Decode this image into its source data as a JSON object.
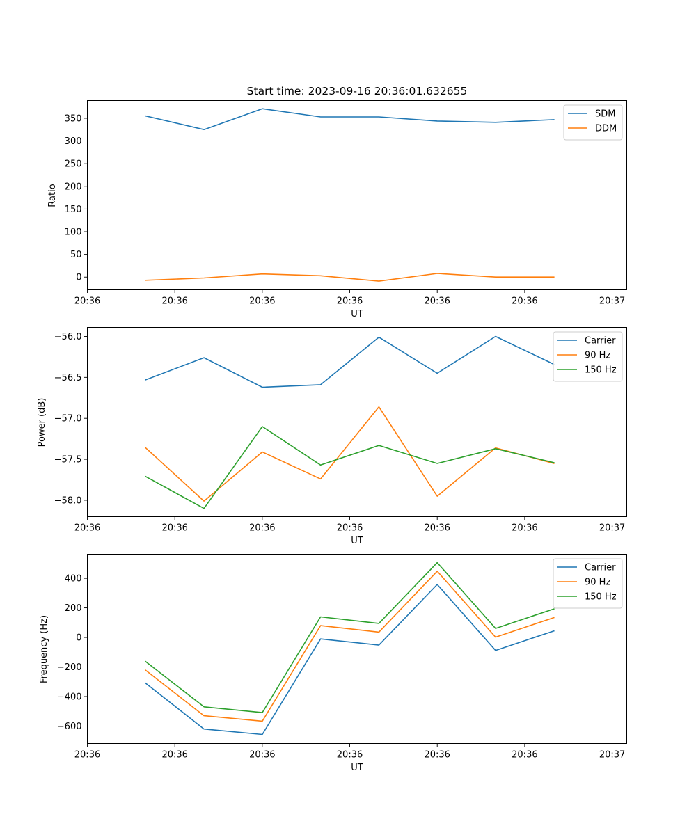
{
  "chart_data": [
    {
      "type": "line",
      "title": "Start time: 2023-09-16 20:36:01.632655",
      "xlabel": "UT",
      "ylabel": "Ratio",
      "x": [
        1,
        2,
        3,
        4,
        5,
        6,
        7,
        8
      ],
      "xlim": [
        0.0,
        9.25
      ],
      "x_ticks": [
        0.0,
        1.5,
        3.0,
        4.5,
        6.0,
        7.5,
        9.0
      ],
      "x_tick_labels": [
        "20:36",
        "20:36",
        "20:36",
        "20:36",
        "20:36",
        "20:36",
        "20:37"
      ],
      "ylim": [
        -28,
        389
      ],
      "y_ticks": [
        0,
        50,
        100,
        150,
        200,
        250,
        300,
        350
      ],
      "y_tick_labels": [
        "0",
        "50",
        "100",
        "150",
        "200",
        "250",
        "300",
        "350"
      ],
      "legend": "top-right",
      "series": [
        {
          "name": "SDM",
          "color": "#1f77b4",
          "values": [
            355,
            325,
            371,
            353,
            353,
            344,
            341,
            347
          ]
        },
        {
          "name": "DDM",
          "color": "#ff7f0e",
          "values": [
            -7,
            -2,
            7,
            3,
            -9,
            8,
            0,
            0
          ]
        }
      ]
    },
    {
      "type": "line",
      "title": "",
      "xlabel": "UT",
      "ylabel": "Power (dB)",
      "x": [
        1,
        2,
        3,
        4,
        5,
        6,
        7,
        8
      ],
      "xlim": [
        0.0,
        9.25
      ],
      "x_ticks": [
        0.0,
        1.5,
        3.0,
        4.5,
        6.0,
        7.5,
        9.0
      ],
      "x_tick_labels": [
        "20:36",
        "20:36",
        "20:36",
        "20:36",
        "20:36",
        "20:36",
        "20:37"
      ],
      "ylim": [
        -58.2,
        -55.89
      ],
      "y_ticks": [
        -58.0,
        -57.5,
        -57.0,
        -56.5,
        -56.0
      ],
      "y_tick_labels": [
        "−58.0",
        "−57.5",
        "−57.0",
        "−56.5",
        "−56.0"
      ],
      "legend": "top-right",
      "series": [
        {
          "name": "Carrier",
          "color": "#1f77b4",
          "values": [
            -56.53,
            -56.26,
            -56.62,
            -56.59,
            -56.01,
            -56.45,
            -56.0,
            -56.34
          ]
        },
        {
          "name": "90 Hz",
          "color": "#ff7f0e",
          "values": [
            -57.36,
            -58.01,
            -57.41,
            -57.74,
            -56.86,
            -57.95,
            -57.36,
            -57.55
          ]
        },
        {
          "name": "150 Hz",
          "color": "#2ca02c",
          "values": [
            -57.71,
            -58.1,
            -57.1,
            -57.57,
            -57.33,
            -57.55,
            -57.37,
            -57.54
          ]
        }
      ]
    },
    {
      "type": "line",
      "title": "",
      "xlabel": "UT",
      "ylabel": "Frequency (Hz)",
      "x": [
        1,
        2,
        3,
        4,
        5,
        6,
        7,
        8
      ],
      "xlim": [
        0.0,
        9.25
      ],
      "x_ticks": [
        0.0,
        1.5,
        3.0,
        4.5,
        6.0,
        7.5,
        9.0
      ],
      "x_tick_labels": [
        "20:36",
        "20:36",
        "20:36",
        "20:36",
        "20:36",
        "20:36",
        "20:37"
      ],
      "ylim": [
        -718,
        563
      ],
      "y_ticks": [
        -600,
        -400,
        -200,
        0,
        200,
        400
      ],
      "y_tick_labels": [
        "−600",
        "−400",
        "−200",
        "0",
        "200",
        "400"
      ],
      "legend": "top-right",
      "series": [
        {
          "name": "Carrier",
          "color": "#1f77b4",
          "values": [
            -310,
            -620,
            -657,
            -10,
            -52,
            358,
            -88,
            44
          ]
        },
        {
          "name": "90 Hz",
          "color": "#ff7f0e",
          "values": [
            -222,
            -530,
            -567,
            80,
            36,
            448,
            2,
            134
          ]
        },
        {
          "name": "150 Hz",
          "color": "#2ca02c",
          "values": [
            -163,
            -470,
            -509,
            139,
            95,
            506,
            61,
            193
          ]
        }
      ]
    }
  ]
}
